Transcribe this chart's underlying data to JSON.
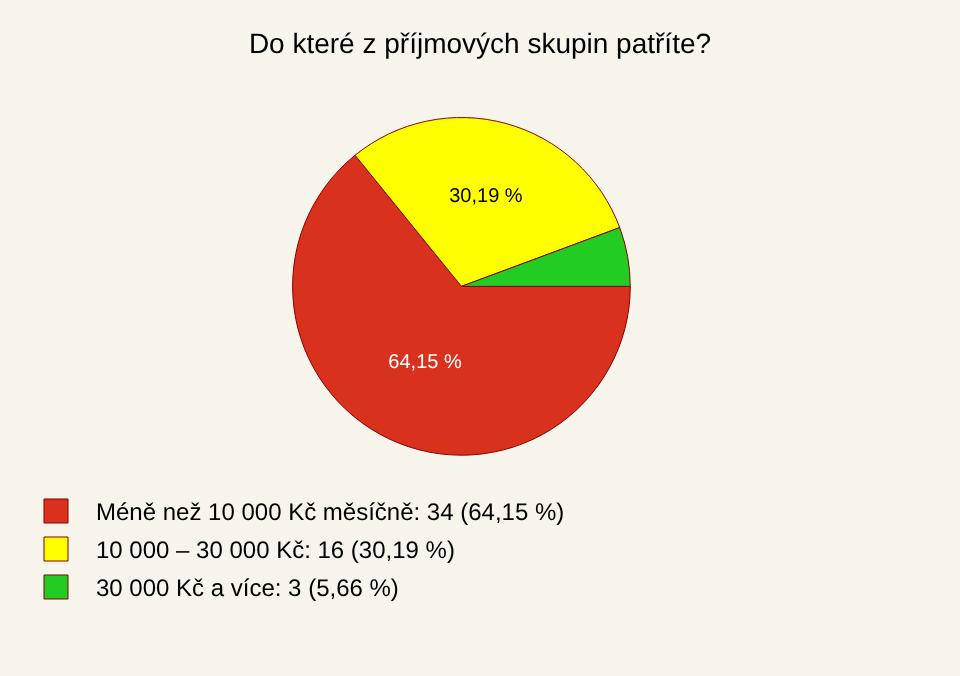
{
  "chart_data": {
    "type": "pie",
    "title": "Do které z příjmových skupin patříte?",
    "categories": [
      "Méně než 10 000 Kč měsíčně: 34 (64,15 %)",
      "10 000 – 30 000 Kč: 16 (30,19 %)",
      "30 000 Kč a více: 3 (5,66 %)"
    ],
    "values": [
      64.15,
      30.19,
      5.66
    ],
    "value_labels": [
      "64,15 %",
      "30,19 %",
      null
    ],
    "colors": [
      "#d8321e",
      "#ffff00",
      "#22cc22"
    ],
    "legend": "bottom left"
  }
}
